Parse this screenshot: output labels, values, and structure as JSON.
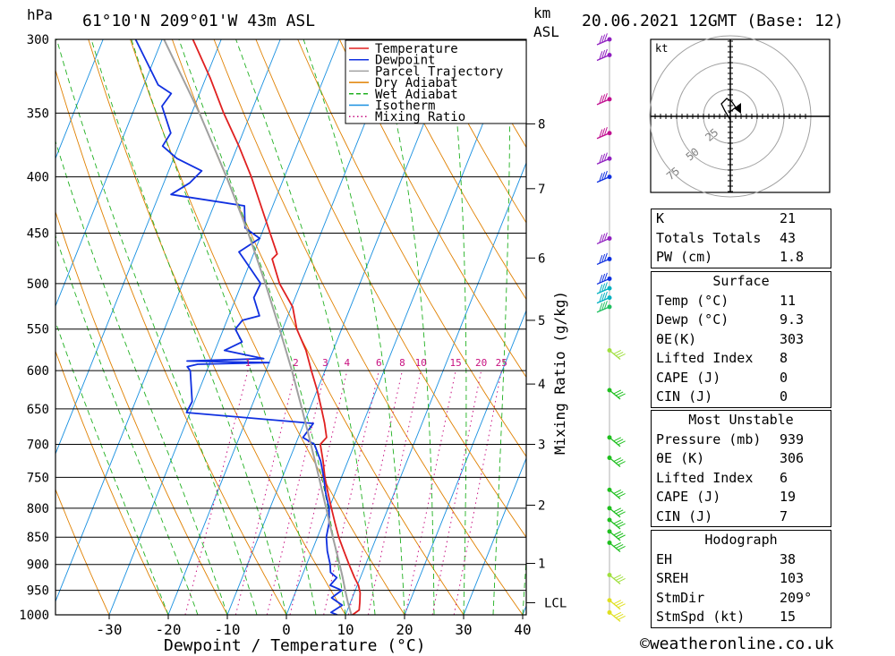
{
  "header": {
    "hpa_unit": "hPa",
    "location": "61°10'N  209°01'W  43m  ASL",
    "km_unit_1": "km",
    "km_unit_2": "ASL",
    "datetime": "20.06.2021  12GMT  (Base: 12)"
  },
  "chart_data": {
    "type": "line",
    "title": "61°10'N  209°01'W  43m  ASL",
    "xlabel": "Dewpoint / Temperature (°C)",
    "ylabel": "hPa",
    "xlim": [
      -40,
      40
    ],
    "ylim": [
      1000,
      300
    ],
    "y_scale": "log",
    "skew": "skew-T",
    "pressure_levels": [
      300,
      350,
      400,
      450,
      500,
      550,
      600,
      650,
      700,
      750,
      800,
      850,
      900,
      950,
      1000
    ],
    "x_ticks": [
      -30,
      -20,
      -10,
      0,
      10,
      20,
      30,
      40
    ],
    "km_ticks": [
      {
        "label": "8",
        "p": 358
      },
      {
        "label": "7",
        "p": 410
      },
      {
        "label": "6",
        "p": 474
      },
      {
        "label": "5",
        "p": 540
      },
      {
        "label": "4",
        "p": 617
      },
      {
        "label": "3",
        "p": 700
      },
      {
        "label": "2",
        "p": 795
      },
      {
        "label": "1",
        "p": 898
      }
    ],
    "lcl_label": "LCL",
    "lcl_p": 975,
    "mixing_ratio_axis_label": "Mixing Ratio (g/kg)",
    "mixing_ratio_labels": [
      "1",
      "2",
      "3",
      "4",
      "6",
      "8",
      "10",
      "15",
      "20",
      "25"
    ],
    "mixing_ratio_values": [
      1,
      2,
      3,
      4,
      6,
      8,
      10,
      15,
      20,
      25
    ],
    "legend": [
      {
        "name": "Temperature",
        "color": "#e02020",
        "style": "solid"
      },
      {
        "name": "Dewpoint",
        "color": "#1030e0",
        "style": "solid"
      },
      {
        "name": "Parcel Trajectory",
        "color": "#a0a0a0",
        "style": "solid"
      },
      {
        "name": "Dry Adiabat",
        "color": "#e08000",
        "style": "solid"
      },
      {
        "name": "Wet Adiabat",
        "color": "#20b020",
        "style": "dashed"
      },
      {
        "name": "Isotherm",
        "color": "#1890e0",
        "style": "solid"
      },
      {
        "name": "Mixing Ratio",
        "color": "#c81080",
        "style": "dotted"
      }
    ],
    "legend_position": "top-right",
    "series": [
      {
        "name": "Temperature",
        "color": "#e02020",
        "points": [
          [
            1000,
            11.2
          ],
          [
            990,
            12.0
          ],
          [
            975,
            11.6
          ],
          [
            955,
            11.0
          ],
          [
            940,
            10.2
          ],
          [
            925,
            9.0
          ],
          [
            900,
            7.2
          ],
          [
            875,
            5.4
          ],
          [
            850,
            3.6
          ],
          [
            825,
            2.0
          ],
          [
            800,
            0.4
          ],
          [
            775,
            -1.2
          ],
          [
            750,
            -2.8
          ],
          [
            725,
            -4.2
          ],
          [
            700,
            -5.8
          ],
          [
            690,
            -5.2
          ],
          [
            670,
            -6.5
          ],
          [
            650,
            -8.0
          ],
          [
            625,
            -10.0
          ],
          [
            600,
            -12.3
          ],
          [
            575,
            -14.6
          ],
          [
            550,
            -17.6
          ],
          [
            525,
            -19.8
          ],
          [
            500,
            -23.6
          ],
          [
            475,
            -26.5
          ],
          [
            470,
            -26.0
          ],
          [
            450,
            -28.6
          ],
          [
            425,
            -32.0
          ],
          [
            400,
            -35.6
          ],
          [
            375,
            -39.8
          ],
          [
            350,
            -44.6
          ],
          [
            325,
            -49.3
          ],
          [
            300,
            -54.8
          ]
        ]
      },
      {
        "name": "Dewpoint",
        "color": "#1030e0",
        "points": [
          [
            1000,
            8.6
          ],
          [
            995,
            7.4
          ],
          [
            980,
            8.8
          ],
          [
            965,
            6.5
          ],
          [
            950,
            7.7
          ],
          [
            940,
            5.4
          ],
          [
            925,
            6.0
          ],
          [
            915,
            4.6
          ],
          [
            900,
            4.0
          ],
          [
            875,
            2.6
          ],
          [
            850,
            1.5
          ],
          [
            825,
            1.0
          ],
          [
            800,
            0.0
          ],
          [
            775,
            -1.6
          ],
          [
            750,
            -3.0
          ],
          [
            725,
            -4.6
          ],
          [
            700,
            -6.8
          ],
          [
            690,
            -9.2
          ],
          [
            670,
            -8.4
          ],
          [
            655,
            -30.6
          ],
          [
            640,
            -30.4
          ],
          [
            600,
            -32.8
          ],
          [
            595,
            -33.6
          ],
          [
            592,
            -32.0
          ],
          [
            590,
            -20.0
          ],
          [
            588,
            -34.0
          ],
          [
            585,
            -21.2
          ],
          [
            575,
            -28.4
          ],
          [
            565,
            -26.0
          ],
          [
            550,
            -28.0
          ],
          [
            540,
            -27.4
          ],
          [
            535,
            -24.8
          ],
          [
            515,
            -27.0
          ],
          [
            500,
            -26.8
          ],
          [
            475,
            -31.3
          ],
          [
            468,
            -32.6
          ],
          [
            455,
            -30.0
          ],
          [
            445,
            -33.2
          ],
          [
            425,
            -34.8
          ],
          [
            415,
            -48.0
          ],
          [
            405,
            -45.6
          ],
          [
            395,
            -44.4
          ],
          [
            385,
            -49.4
          ],
          [
            375,
            -52.7
          ],
          [
            365,
            -52.2
          ],
          [
            345,
            -55.5
          ],
          [
            336,
            -54.8
          ],
          [
            330,
            -57.6
          ],
          [
            300,
            -64.5
          ]
        ]
      },
      {
        "name": "Parcel Trajectory",
        "color": "#a0a0a0",
        "points": [
          [
            1000,
            11.0
          ],
          [
            975,
            9.6
          ],
          [
            950,
            8.3
          ],
          [
            925,
            7.0
          ],
          [
            900,
            5.6
          ],
          [
            850,
            2.6
          ],
          [
            800,
            -0.5
          ],
          [
            750,
            -3.8
          ],
          [
            700,
            -7.4
          ],
          [
            650,
            -11.3
          ],
          [
            600,
            -15.6
          ],
          [
            550,
            -20.5
          ],
          [
            500,
            -26.0
          ],
          [
            450,
            -32.3
          ],
          [
            400,
            -39.8
          ],
          [
            350,
            -48.7
          ],
          [
            300,
            -59.7
          ]
        ]
      }
    ],
    "wind_barbs_note": "vertical wind profile shown by colored barbs along the right of the diagram"
  },
  "hodograph": {
    "unit_label": "kt",
    "ring_labels": [
      "25",
      "50",
      "75"
    ]
  },
  "indices": {
    "rows": [
      {
        "label": "K",
        "value": "21"
      },
      {
        "label": "Totals Totals",
        "value": "43"
      },
      {
        "label": "PW (cm)",
        "value": "1.8"
      }
    ]
  },
  "surface": {
    "title": "Surface",
    "rows": [
      {
        "label": "Temp (°C)",
        "value": "11"
      },
      {
        "label": "Dewp (°C)",
        "value": "9.3"
      },
      {
        "label": "θE(K)",
        "value": "303"
      },
      {
        "label": "Lifted Index",
        "value": "8"
      },
      {
        "label": "CAPE (J)",
        "value": "0"
      },
      {
        "label": "CIN (J)",
        "value": "0"
      }
    ]
  },
  "most_unstable": {
    "title": "Most Unstable",
    "rows": [
      {
        "label": "Pressure (mb)",
        "value": "939"
      },
      {
        "label": "θE (K)",
        "value": "306"
      },
      {
        "label": "Lifted Index",
        "value": "6"
      },
      {
        "label": "CAPE (J)",
        "value": "19"
      },
      {
        "label": "CIN (J)",
        "value": "7"
      }
    ]
  },
  "hodograph_table": {
    "title": "Hodograph",
    "rows": [
      {
        "label": "EH",
        "value": "38"
      },
      {
        "label": "SREH",
        "value": "103"
      },
      {
        "label": "StmDir",
        "value": "209°"
      },
      {
        "label": "StmSpd (kt)",
        "value": "15"
      }
    ]
  },
  "footer": {
    "copyright": "©weatheronline.co.uk"
  },
  "colors": {
    "temperature": "#e02020",
    "dewpoint": "#1030e0",
    "parcel": "#a0a0a0",
    "dry_adiabat": "#e08000",
    "wet_adiabat": "#20b020",
    "isotherm": "#1890e0",
    "mixing_ratio": "#c81080"
  }
}
